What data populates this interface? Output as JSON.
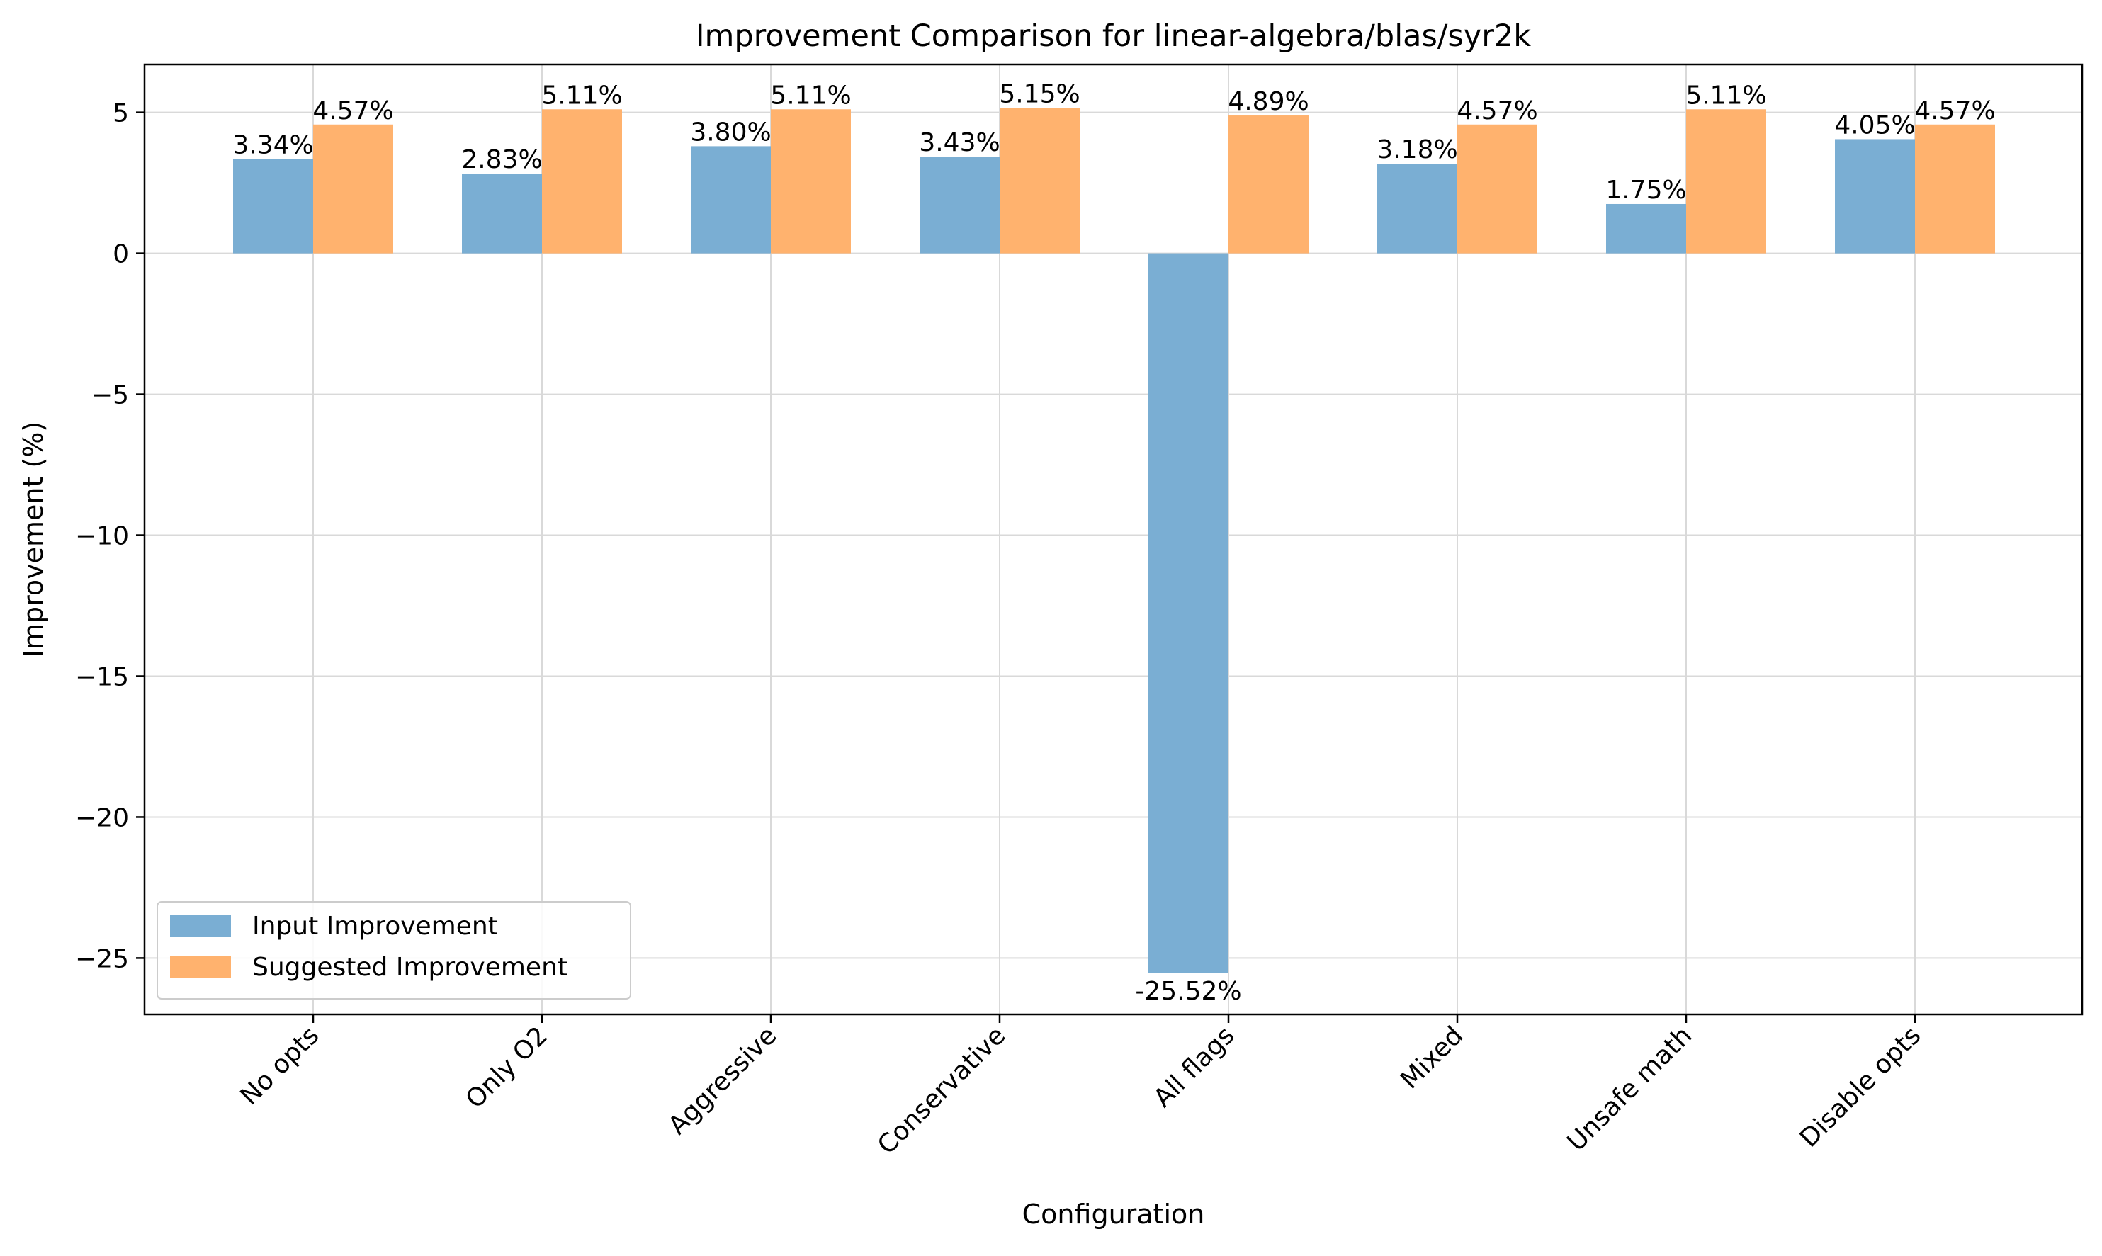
{
  "chart_data": {
    "type": "bar",
    "title": "Improvement Comparison for linear-algebra/blas/syr2k",
    "xlabel": "Configuration",
    "ylabel": "Improvement (%)",
    "categories": [
      "No opts",
      "Only O2",
      "Aggressive",
      "Conservative",
      "All flags",
      "Mixed",
      "Unsafe math",
      "Disable opts"
    ],
    "series": [
      {
        "name": "Input Improvement",
        "color": "#7aaed3",
        "values": [
          3.34,
          2.83,
          3.8,
          3.43,
          -25.52,
          3.18,
          1.75,
          4.05
        ],
        "labels": [
          "3.34%",
          "2.83%",
          "3.80%",
          "3.43%",
          "-25.52%",
          "3.18%",
          "1.75%",
          "4.05%"
        ]
      },
      {
        "name": "Suggested Improvement",
        "color": "#ffb26e",
        "values": [
          4.57,
          5.11,
          5.11,
          5.15,
          4.89,
          4.57,
          5.11,
          4.57
        ],
        "labels": [
          "4.57%",
          "5.11%",
          "5.11%",
          "5.15%",
          "4.89%",
          "4.57%",
          "5.11%",
          "4.57%"
        ]
      }
    ],
    "ylim": [
      -27,
      6.7
    ],
    "yticks": [
      5,
      0,
      -5,
      -10,
      -15,
      -20,
      -25
    ],
    "ytick_labels": [
      "5",
      "0",
      "−5",
      "−10",
      "−15",
      "−20",
      "−25"
    ],
    "grid": true,
    "legend_position": "lower-left"
  }
}
